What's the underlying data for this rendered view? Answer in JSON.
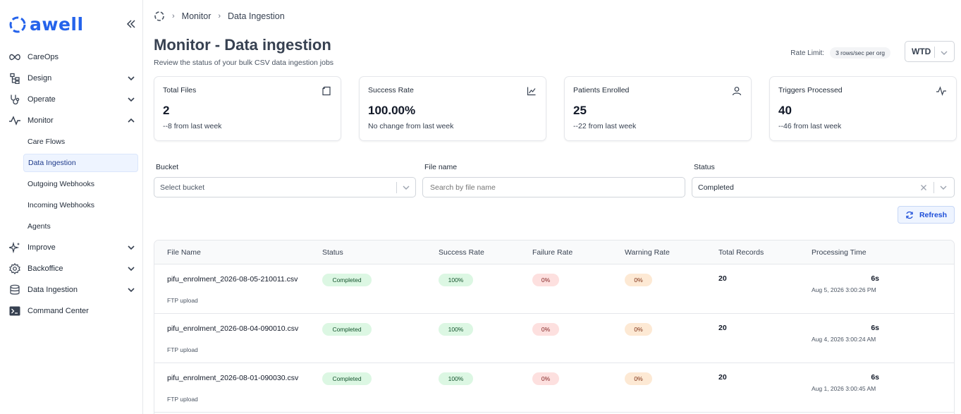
{
  "brand": {
    "name": "awell",
    "color": "#2563eb"
  },
  "sidebar": {
    "items": [
      {
        "label": "CareOps",
        "icon": "infinity-icon"
      },
      {
        "label": "Design",
        "icon": "hierarchy-icon"
      },
      {
        "label": "Operate",
        "icon": "stethoscope-icon"
      },
      {
        "label": "Monitor",
        "icon": "activity-icon"
      },
      {
        "label": "Improve",
        "icon": "sparkles-icon"
      },
      {
        "label": "Backoffice",
        "icon": "gear-icon"
      },
      {
        "label": "Data Ingestion",
        "icon": "database-icon"
      },
      {
        "label": "Command Center",
        "icon": "terminal-icon"
      }
    ],
    "monitor_sub": [
      "Care Flows",
      "Data Ingestion",
      "Outgoing Webhooks",
      "Incoming Webhooks",
      "Agents"
    ],
    "active_sub": "Data Ingestion"
  },
  "breadcrumb": {
    "items": [
      "Monitor",
      "Data Ingestion"
    ]
  },
  "page": {
    "title": "Monitor - Data ingestion",
    "subtitle": "Review the status of your bulk CSV data ingestion jobs",
    "rate_limit_label": "Rate Limit:",
    "rate_limit_value": "3 rows/sec per org",
    "period": "WTD"
  },
  "stats": [
    {
      "title": "Total Files",
      "value": "2",
      "change": "--8 from last week",
      "icon": "file-icon"
    },
    {
      "title": "Success Rate",
      "value": "100.00%",
      "change": "No change from last week",
      "icon": "line-chart-icon"
    },
    {
      "title": "Patients Enrolled",
      "value": "25",
      "change": "--22 from last week",
      "icon": "user-icon"
    },
    {
      "title": "Triggers Processed",
      "value": "40",
      "change": "--46 from last week",
      "icon": "pulse-icon"
    }
  ],
  "filters": {
    "bucket_label": "Bucket",
    "bucket_placeholder": "Select bucket",
    "filename_label": "File name",
    "filename_placeholder": "Search by file name",
    "status_label": "Status",
    "status_value": "Completed",
    "refresh_label": "Refresh"
  },
  "table": {
    "columns": [
      "File Name",
      "Status",
      "Success Rate",
      "Failure Rate",
      "Warning Rate",
      "Total Records",
      "Processing Time"
    ],
    "rows": [
      {
        "file": "pifu_enrolment_2026-08-05-210011.csv",
        "source": "FTP upload",
        "status": "Completed",
        "success": "100%",
        "failure": "0%",
        "warning": "0%",
        "total": "20",
        "time": "6s",
        "date": "Aug 5, 2026 3:00:26 PM"
      },
      {
        "file": "pifu_enrolment_2026-08-04-090010.csv",
        "source": "FTP upload",
        "status": "Completed",
        "success": "100%",
        "failure": "0%",
        "warning": "0%",
        "total": "20",
        "time": "6s",
        "date": "Aug 4, 2026 3:00:24 AM"
      },
      {
        "file": "pifu_enrolment_2026-08-01-090030.csv",
        "source": "FTP upload",
        "status": "Completed",
        "success": "100%",
        "failure": "0%",
        "warning": "0%",
        "total": "20",
        "time": "6s",
        "date": "Aug 1, 2026 3:00:45 AM"
      }
    ]
  }
}
